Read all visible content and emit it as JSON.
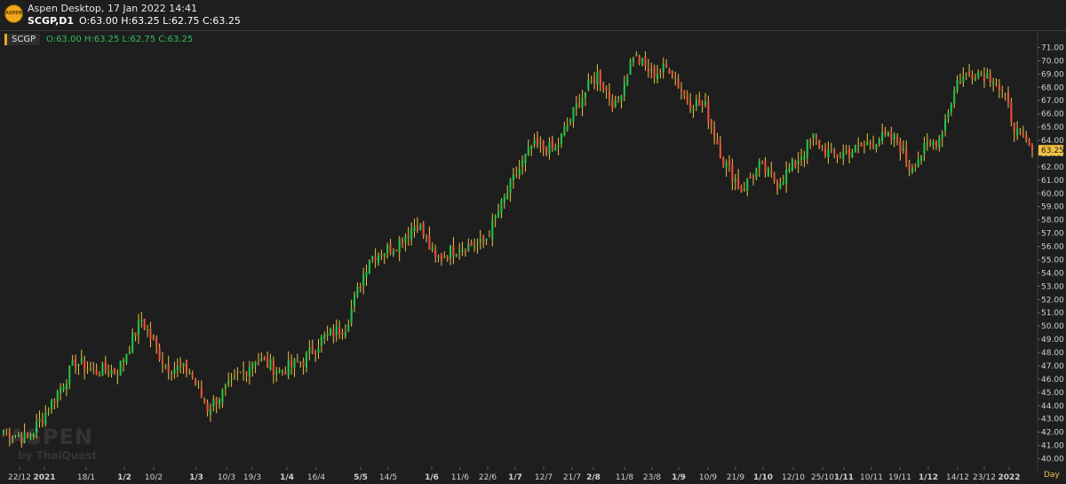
{
  "header": {
    "logo_text": "ASPEN",
    "title": "Aspen Desktop, 17 Jan 2022 14:41",
    "symbol_tf": "SCGP,D1",
    "ohlc": "O:63.00 H:63.25 L:62.75 C:63.25"
  },
  "legend": {
    "symbol": "SCGP",
    "ohlc": "O:63.00  H:63.25  L:62.75  C:63.25"
  },
  "watermark": {
    "main": "ASPEN",
    "sub": "by ThaiQuest"
  },
  "period_label": "Day",
  "colors": {
    "up": "#21c24a",
    "down": "#e8503a",
    "wick": "#f0c040",
    "price_tag": "#f0c040",
    "grid": "#2a2a2a"
  },
  "chart_data": {
    "type": "candlestick",
    "y_range": [
      39.5,
      71.5
    ],
    "y_ticks": [
      40,
      41,
      42,
      43,
      44,
      45,
      46,
      47,
      48,
      49,
      50,
      51,
      52,
      53,
      54,
      55,
      56,
      57,
      58,
      59,
      60,
      61,
      62,
      63,
      64,
      65,
      66,
      67,
      68,
      69,
      70,
      71
    ],
    "x_labels": [
      "22/12",
      "2021",
      "18/1",
      "1/2",
      "10/2",
      "1/3",
      "10/3",
      "19/3",
      "1/4",
      "16/4",
      "5/5",
      "14/5",
      "1/6",
      "11/6",
      "22/6",
      "1/7",
      "12/7",
      "21/7",
      "2/8",
      "11/8",
      "23/8",
      "1/9",
      "10/9",
      "21/9",
      "1/10",
      "12/10",
      "25/10",
      "1/11",
      "10/11",
      "19/11",
      "1/12",
      "14/12",
      "23/12",
      "2022"
    ],
    "bold_x_labels": [
      "2021",
      "1/2",
      "1/3",
      "1/4",
      "5/5",
      "1/6",
      "1/7",
      "2/8",
      "1/9",
      "1/10",
      "1/11",
      "1/12",
      "2022"
    ],
    "last_price": "63.25",
    "anchors": [
      [
        0,
        42.2
      ],
      [
        8,
        41.5
      ],
      [
        14,
        43.5
      ],
      [
        24,
        47.3
      ],
      [
        30,
        46.6
      ],
      [
        38,
        46.6
      ],
      [
        46,
        50.5
      ],
      [
        54,
        47.0
      ],
      [
        62,
        46.6
      ],
      [
        68,
        43.8
      ],
      [
        76,
        45.6
      ],
      [
        84,
        47.6
      ],
      [
        92,
        46.6
      ],
      [
        100,
        47.4
      ],
      [
        106,
        49.0
      ],
      [
        114,
        50.0
      ],
      [
        122,
        55.2
      ],
      [
        130,
        56.0
      ],
      [
        138,
        57.8
      ],
      [
        144,
        55.0
      ],
      [
        152,
        56.0
      ],
      [
        160,
        56.2
      ],
      [
        170,
        61.0
      ],
      [
        176,
        63.5
      ],
      [
        184,
        63.3
      ],
      [
        192,
        67.0
      ],
      [
        198,
        69.0
      ],
      [
        204,
        66.5
      ],
      [
        210,
        70.5
      ],
      [
        216,
        69.0
      ],
      [
        222,
        69.5
      ],
      [
        228,
        67.0
      ],
      [
        234,
        66.5
      ],
      [
        240,
        62.5
      ],
      [
        246,
        60.3
      ],
      [
        252,
        62.0
      ],
      [
        258,
        60.8
      ],
      [
        264,
        62.3
      ],
      [
        270,
        64.2
      ],
      [
        276,
        62.8
      ],
      [
        284,
        63.3
      ],
      [
        292,
        64.2
      ],
      [
        298,
        64.0
      ],
      [
        302,
        62.0
      ],
      [
        308,
        63.5
      ],
      [
        312,
        64.2
      ],
      [
        318,
        68.5
      ],
      [
        324,
        69.2
      ],
      [
        330,
        68.8
      ],
      [
        334,
        67.0
      ],
      [
        338,
        64.5
      ],
      [
        343,
        63.25
      ]
    ]
  }
}
